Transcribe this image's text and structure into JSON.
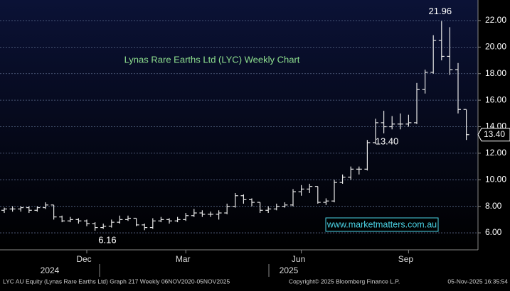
{
  "chart_data": {
    "type": "ohlc",
    "title": "Lynas Rare Earths Ltd (LYC) Weekly Chart",
    "watermark": "www.marketmatters.com.au",
    "categories": [
      null,
      null,
      null,
      null,
      null,
      null,
      null,
      null,
      null,
      null,
      "Dec",
      null,
      null,
      null,
      null,
      null,
      null,
      null,
      null,
      null,
      null,
      null,
      "Mar",
      null,
      null,
      null,
      null,
      null,
      null,
      null,
      null,
      null,
      null,
      null,
      null,
      null,
      "Jun",
      null,
      null,
      null,
      null,
      null,
      null,
      null,
      null,
      null,
      null,
      null,
      null,
      "Sep",
      null,
      null,
      null,
      null,
      null,
      null,
      null
    ],
    "years": [
      "2024",
      "2025"
    ],
    "open": [
      7.7,
      7.8,
      7.8,
      7.9,
      7.7,
      7.9,
      8.1,
      7.2,
      6.9,
      7.0,
      6.9,
      6.7,
      6.4,
      6.5,
      6.8,
      7.0,
      7.1,
      6.6,
      6.4,
      6.9,
      7.0,
      6.9,
      7.0,
      7.3,
      7.5,
      7.4,
      7.4,
      7.5,
      8.0,
      8.8,
      8.5,
      8.3,
      7.7,
      7.8,
      8.0,
      8.1,
      9.1,
      9.3,
      9.5,
      8.3,
      8.4,
      9.8,
      10.2,
      10.8,
      10.8,
      12.8,
      14.3,
      14.0,
      14.2,
      14.2,
      14.3,
      16.8,
      18.1,
      20.5,
      19.3,
      18.3,
      15.3
    ],
    "high": [
      7.9,
      8.0,
      8.0,
      8.0,
      8.0,
      8.3,
      8.1,
      7.3,
      7.2,
      7.1,
      7.0,
      6.8,
      6.7,
      7.0,
      7.3,
      7.3,
      7.1,
      6.7,
      7.1,
      7.2,
      7.1,
      7.2,
      7.5,
      7.8,
      7.7,
      7.6,
      7.7,
      8.2,
      9.0,
      8.9,
      8.6,
      8.3,
      8.0,
      8.2,
      8.3,
      9.3,
      9.6,
      9.7,
      9.5,
      8.6,
      10.0,
      10.4,
      11.0,
      11.0,
      13.0,
      14.6,
      15.2,
      14.8,
      15.0,
      14.9,
      17.3,
      18.3,
      20.9,
      21.96,
      21.5,
      18.8,
      15.3
    ],
    "low": [
      7.5,
      7.6,
      7.6,
      7.5,
      7.6,
      7.8,
      7.0,
      6.8,
      6.8,
      6.7,
      6.5,
      6.16,
      6.3,
      6.4,
      6.7,
      6.9,
      6.5,
      6.2,
      6.3,
      6.8,
      6.7,
      6.8,
      6.9,
      7.2,
      7.2,
      7.2,
      7.0,
      7.4,
      7.9,
      8.2,
      8.0,
      7.5,
      7.5,
      7.7,
      7.9,
      8.0,
      8.8,
      9.0,
      8.2,
      8.1,
      8.3,
      9.7,
      10.0,
      10.4,
      10.7,
      12.7,
      13.5,
      13.8,
      13.8,
      14.0,
      14.2,
      16.5,
      18.0,
      19.0,
      17.9,
      15.0,
      13.0
    ],
    "close": [
      7.8,
      7.8,
      7.9,
      7.7,
      7.9,
      8.1,
      7.2,
      6.9,
      7.0,
      6.9,
      6.7,
      6.4,
      6.5,
      6.8,
      7.0,
      7.1,
      6.6,
      6.4,
      6.9,
      7.0,
      6.9,
      7.0,
      7.3,
      7.5,
      7.4,
      7.4,
      7.5,
      8.0,
      8.8,
      8.5,
      8.3,
      7.7,
      7.8,
      8.0,
      8.1,
      9.1,
      9.3,
      9.5,
      8.3,
      8.4,
      9.8,
      10.2,
      10.8,
      10.8,
      12.8,
      14.3,
      14.0,
      14.2,
      14.2,
      14.3,
      16.8,
      18.1,
      20.5,
      19.3,
      18.3,
      15.3,
      13.4
    ],
    "color": "#e8e8e8",
    "annotations": [
      "21.96",
      "13.40",
      "6.16"
    ],
    "last_label": "13.40",
    "ylim": [
      4.72,
      23.55
    ],
    "yticks": [
      {
        "value": 6,
        "label": "6.00"
      },
      {
        "value": 8,
        "label": "8.00"
      },
      {
        "value": 10,
        "label": "10.00"
      },
      {
        "value": 12,
        "label": "12.00"
      },
      {
        "value": 14,
        "label": "14.00"
      },
      {
        "value": 16,
        "label": "16.00"
      },
      {
        "value": 18,
        "label": "18.00"
      },
      {
        "value": 20,
        "label": "20.00"
      },
      {
        "value": 22,
        "label": "22.00"
      }
    ],
    "grid": true
  },
  "footer": {
    "left": "LYC AU Equity (Lynas Rare Earths Ltd) Graph 217 Weekly 06NOV2020-05NOV2025",
    "center": "Copyright© 2025 Bloomberg Finance L.P.",
    "right": "05-Nov-2025 16:35:54"
  }
}
